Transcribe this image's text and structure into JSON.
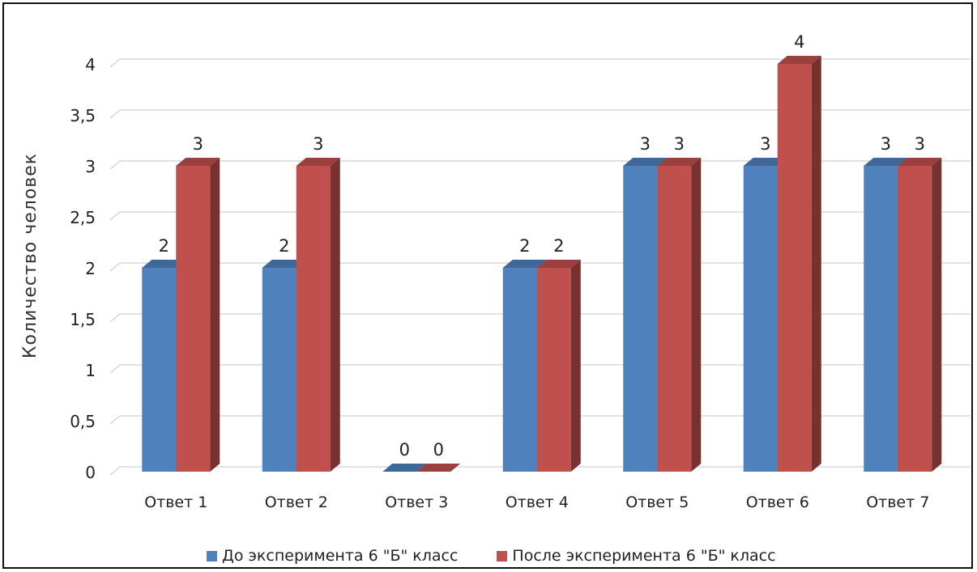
{
  "chart_data": {
    "type": "bar",
    "ylabel": "Количество человек",
    "categories": [
      "Ответ 1",
      "Ответ 2",
      "Ответ 3",
      "Ответ 4",
      "Ответ 5",
      "Ответ 6",
      "Ответ 7"
    ],
    "series": [
      {
        "name": "До эксперимента 6 \"Б\" класс",
        "values": [
          2,
          2,
          0,
          2,
          3,
          3,
          3
        ],
        "labels": [
          "2",
          "2",
          "0",
          "2",
          "3",
          "3",
          "3"
        ],
        "color": "#4f81bd"
      },
      {
        "name": "После эксперимента 6 \"Б\" класс",
        "values": [
          3,
          3,
          0,
          2,
          3,
          4,
          3
        ],
        "labels": [
          "3",
          "3",
          "0",
          "2",
          "3",
          "4",
          "3"
        ],
        "color": "#c0504d"
      }
    ],
    "yticks": [
      "0",
      "0,5",
      "1",
      "1,5",
      "2",
      "2,5",
      "3",
      "3,5",
      "4"
    ],
    "ylim": [
      0,
      4
    ],
    "grid": true,
    "legend_position": "bottom",
    "style": "3d-clustered-column"
  }
}
